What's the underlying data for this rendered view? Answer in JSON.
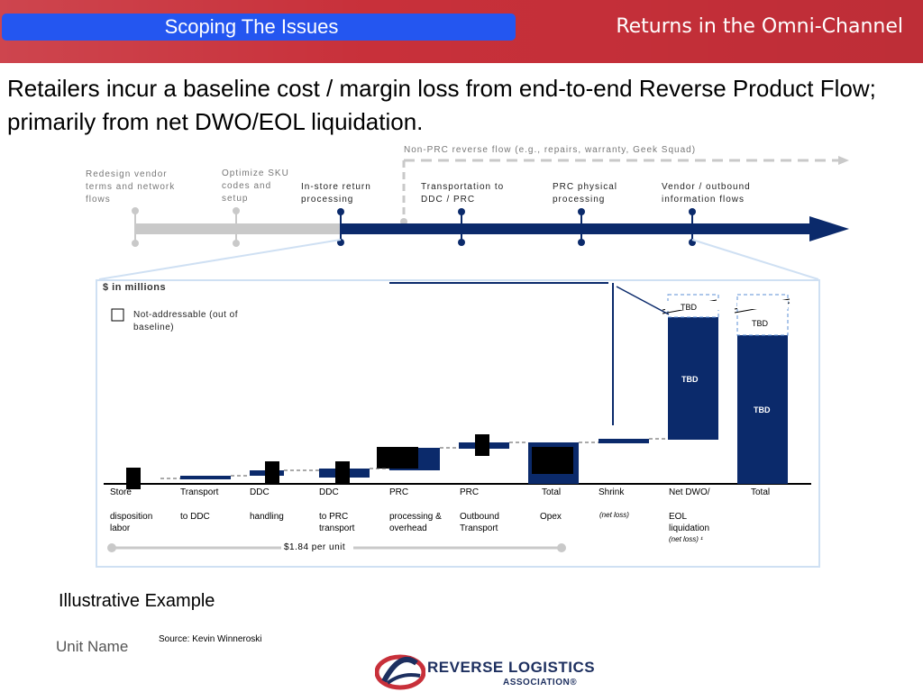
{
  "header": {
    "tab_title": "Scoping The Issues",
    "deck_title": "Returns in the Omni-Channel"
  },
  "headline": "Retailers incur a baseline cost / margin loss from end-to-end Reverse Product Flow; primarily from net DWO/EOL liquidation.",
  "flow": {
    "non_prc_label": "Non-PRC reverse flow (e.g., repairs, warranty, Geek Squad)",
    "stages_out_of_baseline": [
      {
        "label": "Redesign vendor terms and network flows"
      },
      {
        "label": "Optimize SKU codes and setup"
      }
    ],
    "stages_baseline": [
      {
        "label": "In-store return processing"
      },
      {
        "label": "Transportation to DDC / PRC"
      },
      {
        "label": "PRC physical processing"
      },
      {
        "label": "Vendor / outbound information flows"
      }
    ]
  },
  "chart": {
    "unit_label": "$ in millions",
    "legend_label": "Not-addressable (out of baseline)",
    "bars": [
      {
        "label_line1": "Store",
        "label_line2": "disposition labor"
      },
      {
        "label_line1": "Transport",
        "label_line2": "to DDC"
      },
      {
        "label_line1": "DDC",
        "label_line2": "handling"
      },
      {
        "label_line1": "DDC",
        "label_line2": "to PRC transport"
      },
      {
        "label_line1": "PRC",
        "label_line2": "processing & overhead"
      },
      {
        "label_line1": "PRC",
        "label_line2": "Outbound Transport"
      },
      {
        "label_line1": "Total",
        "label_line2": "Opex"
      },
      {
        "label_line1": "Shrink",
        "note": "(net loss)"
      },
      {
        "label_line1": "Net DWO/",
        "label_line2": "EOL liquidation",
        "note": "(net loss) ¹"
      },
      {
        "label_line1": "Total"
      }
    ],
    "tbd_label": "TBD",
    "per_unit_label": "$1.84 per unit"
  },
  "footer": {
    "illustrative": "Illustrative Example",
    "unit_name": "Unit Name",
    "source": "Source: Kevin Winneroski",
    "logo_line1": "REVERSE LOGISTICS",
    "logo_line2": "ASSOCIATION®"
  },
  "colors": {
    "header_red": "#c8303a",
    "tab_blue": "#2456f0",
    "navy": "#0b2a6b",
    "grey": "#c9c9c9"
  }
}
